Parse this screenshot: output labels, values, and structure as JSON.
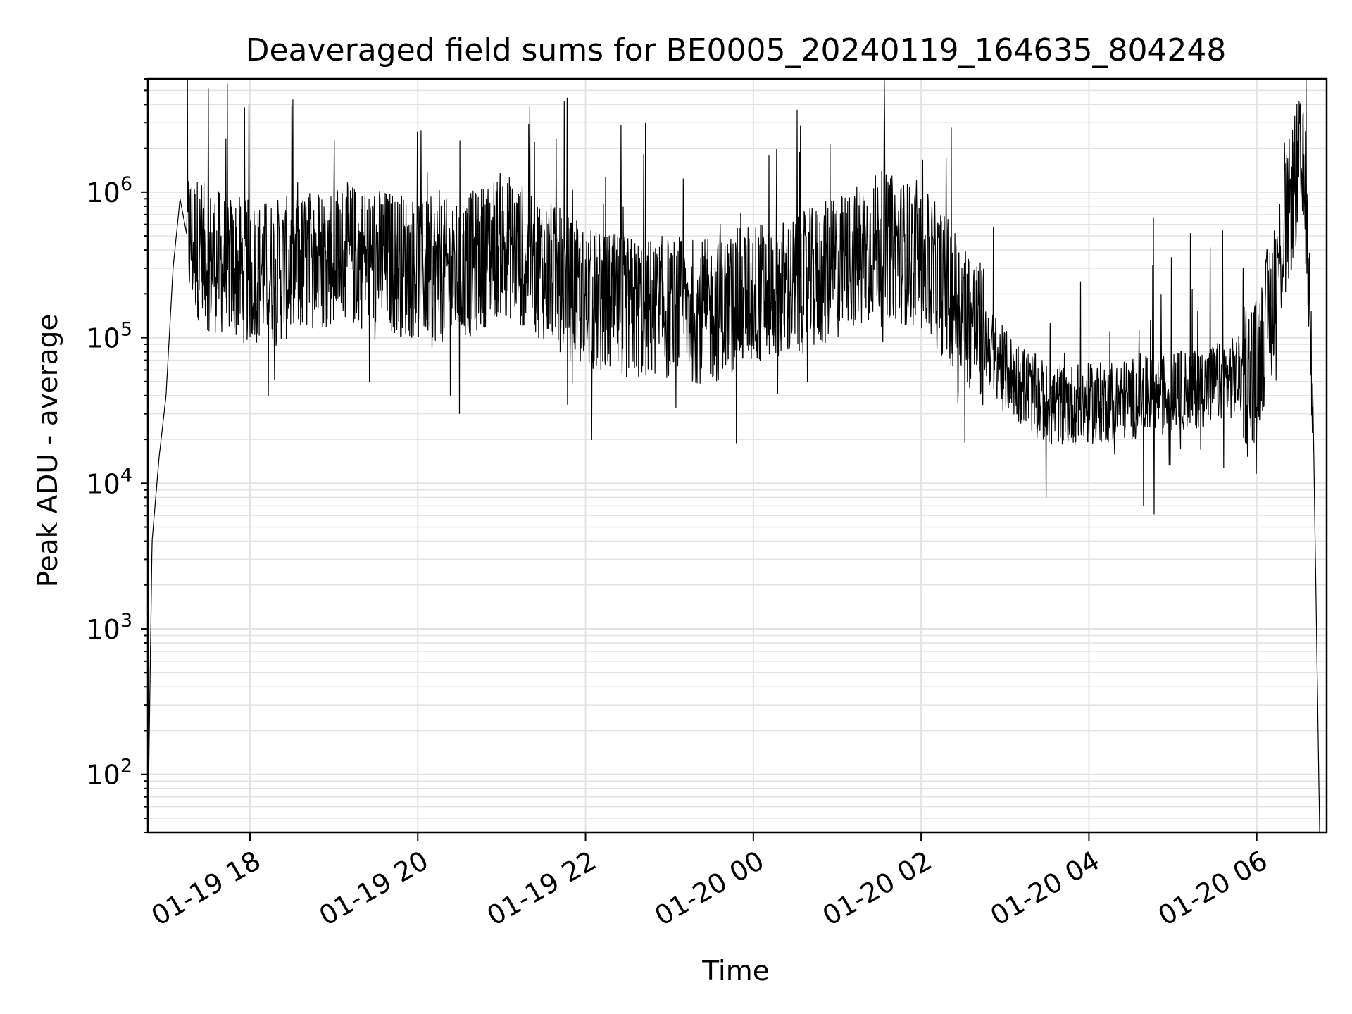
{
  "chart_data": {
    "type": "line",
    "title": "Deaveraged field sums for BE0005_20240119_164635_804248",
    "xlabel": "Time",
    "ylabel": "Peak ADU - average",
    "yscale": "log",
    "ylim": [
      40,
      6000000
    ],
    "xlim": [
      "2024-01-19 16:47",
      "2024-01-20 06:50"
    ],
    "grid": true,
    "line_color": "#000000",
    "grid_color": "#e3e3e3",
    "x_ticks": [
      {
        "time": "2024-01-19 18:00",
        "label": "01-19 18"
      },
      {
        "time": "2024-01-19 20:00",
        "label": "01-19 20"
      },
      {
        "time": "2024-01-19 22:00",
        "label": "01-19 22"
      },
      {
        "time": "2024-01-20 00:00",
        "label": "01-20 00"
      },
      {
        "time": "2024-01-20 02:00",
        "label": "01-20 02"
      },
      {
        "time": "2024-01-20 04:00",
        "label": "01-20 04"
      },
      {
        "time": "2024-01-20 06:00",
        "label": "01-20 06"
      }
    ],
    "y_ticks": [
      {
        "value": 100,
        "base": "10",
        "exp": "2"
      },
      {
        "value": 1000,
        "base": "10",
        "exp": "3"
      },
      {
        "value": 10000,
        "base": "10",
        "exp": "4"
      },
      {
        "value": 100000,
        "base": "10",
        "exp": "5"
      },
      {
        "value": 1000000,
        "base": "10",
        "exp": "6"
      }
    ],
    "series": [
      {
        "values_description_free": true,
        "x": [
          "2024-01-19 16:47",
          "2024-01-19 16:50",
          "2024-01-19 16:55",
          "2024-01-19 17:00",
          "2024-01-19 17:05",
          "2024-01-19 17:10",
          "2024-01-19 17:15",
          "2024-01-19 17:30",
          "2024-01-19 18:00",
          "2024-01-19 18:30",
          "2024-01-19 19:00",
          "2024-01-19 19:30",
          "2024-01-19 20:00",
          "2024-01-19 20:30",
          "2024-01-19 21:00",
          "2024-01-19 21:30",
          "2024-01-19 22:00",
          "2024-01-19 22:30",
          "2024-01-19 23:00",
          "2024-01-19 23:30",
          "2024-01-20 00:00",
          "2024-01-20 00:30",
          "2024-01-20 01:00",
          "2024-01-20 01:30",
          "2024-01-20 02:00",
          "2024-01-20 02:30",
          "2024-01-20 03:00",
          "2024-01-20 03:30",
          "2024-01-20 04:00",
          "2024-01-20 04:30",
          "2024-01-20 05:00",
          "2024-01-20 05:30",
          "2024-01-20 06:00",
          "2024-01-20 06:15",
          "2024-01-20 06:25",
          "2024-01-20 06:30",
          "2024-01-20 06:35",
          "2024-01-20 06:40",
          "2024-01-20 06:45"
        ],
        "values": [
          40,
          4000,
          15000,
          40000,
          300000,
          900000,
          500000,
          350000,
          280000,
          300000,
          380000,
          350000,
          300000,
          280000,
          450000,
          300000,
          180000,
          160000,
          160000,
          150000,
          200000,
          220000,
          300000,
          450000,
          350000,
          160000,
          60000,
          35000,
          35000,
          38000,
          42000,
          48000,
          60000,
          300000,
          900000,
          1500000,
          1000000,
          50000,
          40
        ]
      }
    ]
  }
}
